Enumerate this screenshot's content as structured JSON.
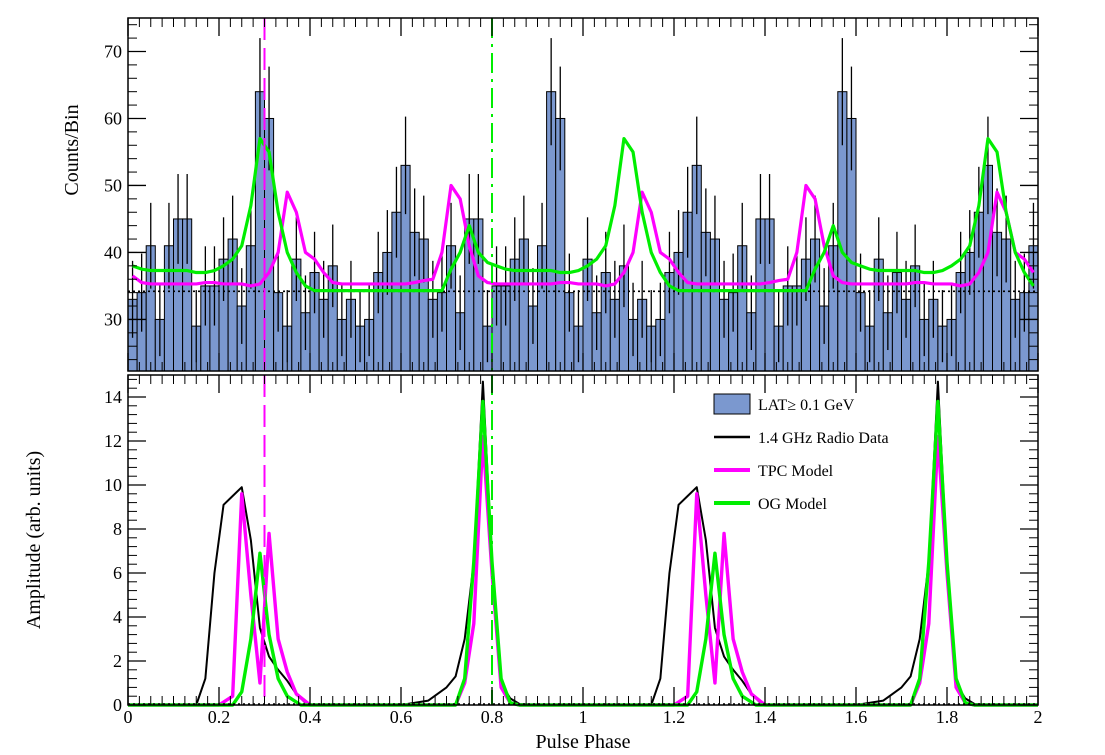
{
  "chart_data": [
    {
      "type": "bar",
      "panel": "top",
      "ylabel": "Counts/Bin",
      "xlim": [
        0,
        2
      ],
      "ylim": [
        22.3,
        75
      ],
      "yticks": [
        30,
        40,
        50,
        60,
        70
      ],
      "ytick_labels": [
        "30",
        "40",
        "50",
        "60",
        "70"
      ],
      "bin_width": 0.02,
      "background_level": 34.2,
      "series": [
        {
          "name": "LAT≥ 0.1 GeV",
          "type": "histogram",
          "bin_starts": [
            0.0,
            0.02,
            0.04,
            0.06,
            0.08,
            0.1,
            0.12,
            0.14,
            0.16,
            0.18,
            0.2,
            0.22,
            0.24,
            0.26,
            0.28,
            0.3,
            0.32,
            0.34,
            0.36,
            0.38,
            0.4,
            0.42,
            0.44,
            0.46,
            0.48,
            0.5,
            0.52,
            0.54,
            0.56,
            0.58,
            0.6,
            0.62,
            0.64,
            0.66,
            0.68,
            0.7,
            0.72,
            0.74,
            0.76,
            0.78,
            0.8,
            0.82,
            0.84,
            0.86,
            0.88,
            0.9,
            0.92,
            0.94,
            0.96,
            0.98,
            1.0,
            1.02,
            1.04,
            1.06,
            1.08,
            1.1,
            1.12,
            1.14,
            1.16,
            1.18,
            1.2,
            1.22,
            1.24,
            1.26,
            1.28,
            1.3,
            1.32,
            1.34,
            1.36,
            1.38,
            1.4,
            1.42,
            1.44,
            1.46,
            1.48,
            1.5,
            1.52,
            1.54,
            1.56,
            1.58,
            1.6,
            1.62,
            1.64,
            1.66,
            1.68,
            1.7,
            1.72,
            1.74,
            1.76,
            1.78,
            1.8,
            1.82,
            1.84,
            1.86,
            1.88,
            1.9,
            1.92,
            1.94,
            1.96,
            1.98
          ],
          "counts": [
            33,
            34,
            41,
            30,
            41,
            45,
            45,
            29,
            35,
            35,
            39,
            42,
            32,
            41,
            64,
            60,
            34,
            29,
            39,
            31,
            37,
            33,
            38,
            30,
            33,
            29,
            30,
            37,
            40,
            46,
            53,
            43,
            42,
            33,
            34,
            41,
            31,
            45,
            45,
            29,
            35,
            35,
            39,
            42,
            32,
            41,
            64,
            60,
            34,
            29,
            39,
            31,
            37,
            33,
            38,
            30,
            33,
            29,
            30,
            37,
            40,
            46,
            53,
            43,
            42,
            33,
            34,
            41,
            31,
            45,
            45,
            29,
            35,
            35,
            39,
            42,
            32,
            41,
            64,
            60,
            34,
            29,
            39,
            31,
            37,
            33,
            38,
            30,
            33,
            29,
            30,
            37,
            40,
            46,
            53,
            43,
            42,
            33,
            34,
            41
          ],
          "color": "#7b98cf"
        },
        {
          "name": "TPC Model",
          "type": "line",
          "x": [
            0.0,
            0.02,
            0.04,
            0.06,
            0.08,
            0.1,
            0.12,
            0.14,
            0.16,
            0.18,
            0.2,
            0.22,
            0.24,
            0.26,
            0.28,
            0.3,
            0.32,
            0.34,
            0.36,
            0.38,
            0.4,
            0.42,
            0.44,
            0.46,
            0.48,
            0.5,
            0.52,
            0.54,
            0.56,
            0.58,
            0.6,
            0.62,
            0.64,
            0.66,
            0.68,
            0.7,
            0.72,
            0.74,
            0.76,
            0.78,
            0.8,
            0.82,
            0.84,
            0.86,
            0.88,
            0.9,
            0.92,
            0.94,
            0.96,
            0.98,
            1.0,
            1.02,
            1.04,
            1.06,
            1.08,
            1.1,
            1.12,
            1.14,
            1.16,
            1.18,
            1.2,
            1.22,
            1.24,
            1.26,
            1.28,
            1.3,
            1.32,
            1.34,
            1.36,
            1.38,
            1.4,
            1.42,
            1.44,
            1.46,
            1.48,
            1.5,
            1.52,
            1.54,
            1.56,
            1.58,
            1.6,
            1.62,
            1.64,
            1.66,
            1.68,
            1.7,
            1.72,
            1.74,
            1.76,
            1.78,
            1.8,
            1.82,
            1.84,
            1.86,
            1.88,
            1.9,
            1.92,
            1.94,
            1.96,
            1.98
          ],
          "y": [
            36.5,
            35.5,
            35.3,
            35.3,
            35.3,
            35.3,
            35.3,
            35.3,
            35.5,
            35.5,
            35.3,
            35.3,
            35.3,
            35.0,
            35.3,
            37.0,
            40.0,
            49.0,
            46.0,
            40.0,
            39.0,
            37.0,
            35.5,
            35.3,
            35.3,
            35.3,
            35.3,
            35.3,
            35.3,
            35.3,
            35.3,
            35.5,
            35.8,
            36.0,
            40.0,
            50.0,
            48.0,
            41.0,
            36.5,
            35.5,
            35.3,
            35.3,
            35.3,
            35.3,
            35.3,
            35.3,
            35.3,
            35.5,
            35.5,
            35.3,
            35.3,
            35.3,
            35.0,
            35.3,
            37.0,
            40.0,
            49.0,
            46.0,
            40.0,
            39.0,
            37.0,
            35.5,
            35.3,
            35.3,
            35.3,
            35.3,
            35.3,
            35.3,
            35.3,
            35.3,
            35.5,
            35.8,
            36.0,
            40.0,
            50.0,
            48.0,
            41.0,
            36.5,
            35.5,
            35.3,
            35.3,
            35.3,
            35.3,
            35.3,
            35.3,
            35.3,
            35.5,
            35.5,
            35.3,
            35.3,
            35.3,
            35.0,
            35.3,
            37.0,
            40.0,
            49.0,
            46.0,
            40.0,
            39.0,
            37.0
          ],
          "color": "#ff00ff"
        },
        {
          "name": "OG Model",
          "type": "line",
          "x": [
            0.0,
            0.02,
            0.04,
            0.06,
            0.08,
            0.1,
            0.12,
            0.14,
            0.16,
            0.18,
            0.2,
            0.22,
            0.24,
            0.26,
            0.28,
            0.3,
            0.32,
            0.34,
            0.36,
            0.38,
            0.4,
            0.42,
            0.44,
            0.46,
            0.48,
            0.5,
            0.52,
            0.54,
            0.56,
            0.58,
            0.6,
            0.62,
            0.64,
            0.66,
            0.68,
            0.7,
            0.72,
            0.74,
            0.76,
            0.78,
            0.8,
            0.82,
            0.84,
            0.86,
            0.88,
            0.9,
            0.92,
            0.94,
            0.96,
            0.98,
            1.0,
            1.02,
            1.04,
            1.06,
            1.08,
            1.1,
            1.12,
            1.14,
            1.16,
            1.18,
            1.2,
            1.22,
            1.24,
            1.26,
            1.28,
            1.3,
            1.32,
            1.34,
            1.36,
            1.38,
            1.4,
            1.42,
            1.44,
            1.46,
            1.48,
            1.5,
            1.52,
            1.54,
            1.56,
            1.58,
            1.6,
            1.62,
            1.64,
            1.66,
            1.68,
            1.7,
            1.72,
            1.74,
            1.76,
            1.78,
            1.8,
            1.82,
            1.84,
            1.86,
            1.88,
            1.9,
            1.92,
            1.94,
            1.96,
            1.98
          ],
          "y": [
            38.0,
            37.5,
            37.3,
            37.3,
            37.3,
            37.3,
            37.3,
            37.0,
            37.0,
            37.3,
            38.0,
            39.0,
            41.0,
            47.0,
            57.0,
            55.0,
            46.0,
            40.0,
            37.0,
            35.0,
            34.3,
            34.3,
            34.3,
            34.3,
            34.3,
            34.3,
            34.3,
            34.3,
            34.3,
            34.3,
            34.3,
            34.3,
            34.3,
            34.3,
            34.3,
            37.5,
            40.0,
            44.0,
            40.0,
            38.5,
            38.0,
            37.5,
            37.3,
            37.3,
            37.3,
            37.3,
            37.3,
            37.0,
            37.0,
            37.3,
            38.0,
            39.0,
            41.0,
            47.0,
            57.0,
            55.0,
            46.0,
            40.0,
            37.0,
            35.0,
            34.3,
            34.3,
            34.3,
            34.3,
            34.3,
            34.3,
            34.3,
            34.3,
            34.3,
            34.3,
            34.3,
            34.3,
            34.3,
            34.3,
            34.3,
            37.5,
            40.0,
            44.0,
            40.0,
            38.5,
            38.0,
            37.5,
            37.3,
            37.3,
            37.3,
            37.3,
            37.3,
            37.0,
            37.0,
            37.3,
            38.0,
            39.0,
            41.0,
            47.0,
            57.0,
            55.0,
            46.0,
            40.0,
            37.0,
            35.0
          ],
          "color": "#00ee00"
        }
      ],
      "vlines": [
        {
          "x": 0.3,
          "color": "#ff00ff",
          "style": "dashed"
        },
        {
          "x": 0.8,
          "color": "#00ee00",
          "style": "dash-dot"
        }
      ],
      "grid": false
    },
    {
      "type": "line",
      "panel": "bottom",
      "xlabel": "Pulse Phase",
      "ylabel": "Amplitude (arb. units)",
      "xlim": [
        0,
        2
      ],
      "ylim": [
        0,
        15
      ],
      "xticks": [
        0,
        0.2,
        0.4,
        0.6,
        0.8,
        1,
        1.2,
        1.4,
        1.6,
        1.8,
        2
      ],
      "xtick_labels": [
        "0",
        "0.2",
        "0.4",
        "0.6",
        "0.8",
        "1",
        "1.2",
        "1.4",
        "1.6",
        "1.8",
        "2"
      ],
      "yticks": [
        0,
        2,
        4,
        6,
        8,
        10,
        12,
        14
      ],
      "ytick_labels": [
        "0",
        "2",
        "4",
        "6",
        "8",
        "10",
        "12",
        "14"
      ],
      "legend_position": "top-right",
      "series": [
        {
          "name": "1.4 GHz Radio Data",
          "x": [
            0.0,
            0.15,
            0.17,
            0.19,
            0.21,
            0.23,
            0.25,
            0.27,
            0.29,
            0.31,
            0.33,
            0.35,
            0.37,
            0.39,
            0.41,
            0.6,
            0.66,
            0.7,
            0.72,
            0.74,
            0.76,
            0.78,
            0.8,
            0.82,
            0.84,
            0.86,
            0.9,
            1.0,
            1.15,
            1.17,
            1.19,
            1.21,
            1.23,
            1.25,
            1.27,
            1.29,
            1.31,
            1.33,
            1.35,
            1.37,
            1.39,
            1.41,
            1.6,
            1.66,
            1.7,
            1.72,
            1.74,
            1.76,
            1.78,
            1.8,
            1.82,
            1.84,
            1.86,
            1.9,
            2.0
          ],
          "y": [
            0,
            0,
            1.2,
            6.0,
            9.1,
            9.5,
            9.9,
            7.5,
            3.5,
            2.2,
            1.6,
            1.1,
            0.5,
            0.1,
            0,
            0,
            0.2,
            0.8,
            1.3,
            3.0,
            6.5,
            14.7,
            6.5,
            1.0,
            0.3,
            0.05,
            0,
            0,
            0,
            1.2,
            6.0,
            9.1,
            9.5,
            9.9,
            7.5,
            3.5,
            2.2,
            1.6,
            1.1,
            0.5,
            0.1,
            0,
            0,
            0.2,
            0.8,
            1.3,
            3.0,
            6.5,
            14.7,
            6.5,
            1.0,
            0.3,
            0.05,
            0,
            0
          ],
          "color": "#000000"
        },
        {
          "name": "TPC Model",
          "x": [
            0.0,
            0.2,
            0.23,
            0.25,
            0.27,
            0.29,
            0.31,
            0.33,
            0.35,
            0.37,
            0.4,
            0.72,
            0.74,
            0.76,
            0.78,
            0.8,
            0.82,
            0.84,
            0.86,
            0.9,
            1.0,
            1.2,
            1.23,
            1.25,
            1.27,
            1.29,
            1.31,
            1.33,
            1.35,
            1.37,
            1.4,
            1.72,
            1.74,
            1.76,
            1.78,
            1.8,
            1.82,
            1.84,
            1.86,
            1.9,
            2.0
          ],
          "y": [
            0,
            0,
            0.4,
            9.6,
            5.0,
            1.0,
            7.8,
            3.0,
            1.5,
            0.5,
            0,
            0,
            1.0,
            3.7,
            12.2,
            6.0,
            0.8,
            0.1,
            0,
            0,
            0,
            0,
            0.4,
            9.6,
            5.0,
            1.0,
            7.8,
            3.0,
            1.5,
            0.5,
            0,
            0,
            1.0,
            3.7,
            12.2,
            6.0,
            0.8,
            0.1,
            0,
            0,
            0
          ],
          "color": "#ff00ff"
        },
        {
          "name": "OG Model",
          "x": [
            0.0,
            0.23,
            0.25,
            0.27,
            0.29,
            0.31,
            0.33,
            0.35,
            0.38,
            0.72,
            0.74,
            0.76,
            0.78,
            0.8,
            0.82,
            0.84,
            0.86,
            1.0,
            1.23,
            1.25,
            1.27,
            1.29,
            1.31,
            1.33,
            1.35,
            1.38,
            1.72,
            1.74,
            1.76,
            1.78,
            1.8,
            1.82,
            1.84,
            1.86,
            2.0
          ],
          "y": [
            0,
            0,
            0.6,
            3.0,
            6.9,
            3.2,
            1.2,
            0.4,
            0,
            0,
            1.2,
            6.5,
            13.8,
            6.5,
            1.2,
            0.1,
            0,
            0,
            0,
            0.6,
            3.0,
            6.9,
            3.2,
            1.2,
            0.4,
            0,
            0,
            1.2,
            6.5,
            13.8,
            6.5,
            1.2,
            0.1,
            0,
            0
          ],
          "color": "#00ee00"
        }
      ],
      "legend": [
        {
          "label": "LAT≥ 0.1 GeV",
          "color": "#7b98cf",
          "kind": "box"
        },
        {
          "label": "1.4 GHz Radio Data",
          "color": "#000000",
          "kind": "line"
        },
        {
          "label": "TPC Model",
          "color": "#ff00ff",
          "kind": "line"
        },
        {
          "label": "OG Model",
          "color": "#00ee00",
          "kind": "line"
        }
      ],
      "vlines": [
        {
          "x": 0.3,
          "color": "#ff00ff",
          "style": "dashed"
        },
        {
          "x": 0.8,
          "color": "#00ee00",
          "style": "dash-dot"
        }
      ],
      "grid": false
    }
  ]
}
